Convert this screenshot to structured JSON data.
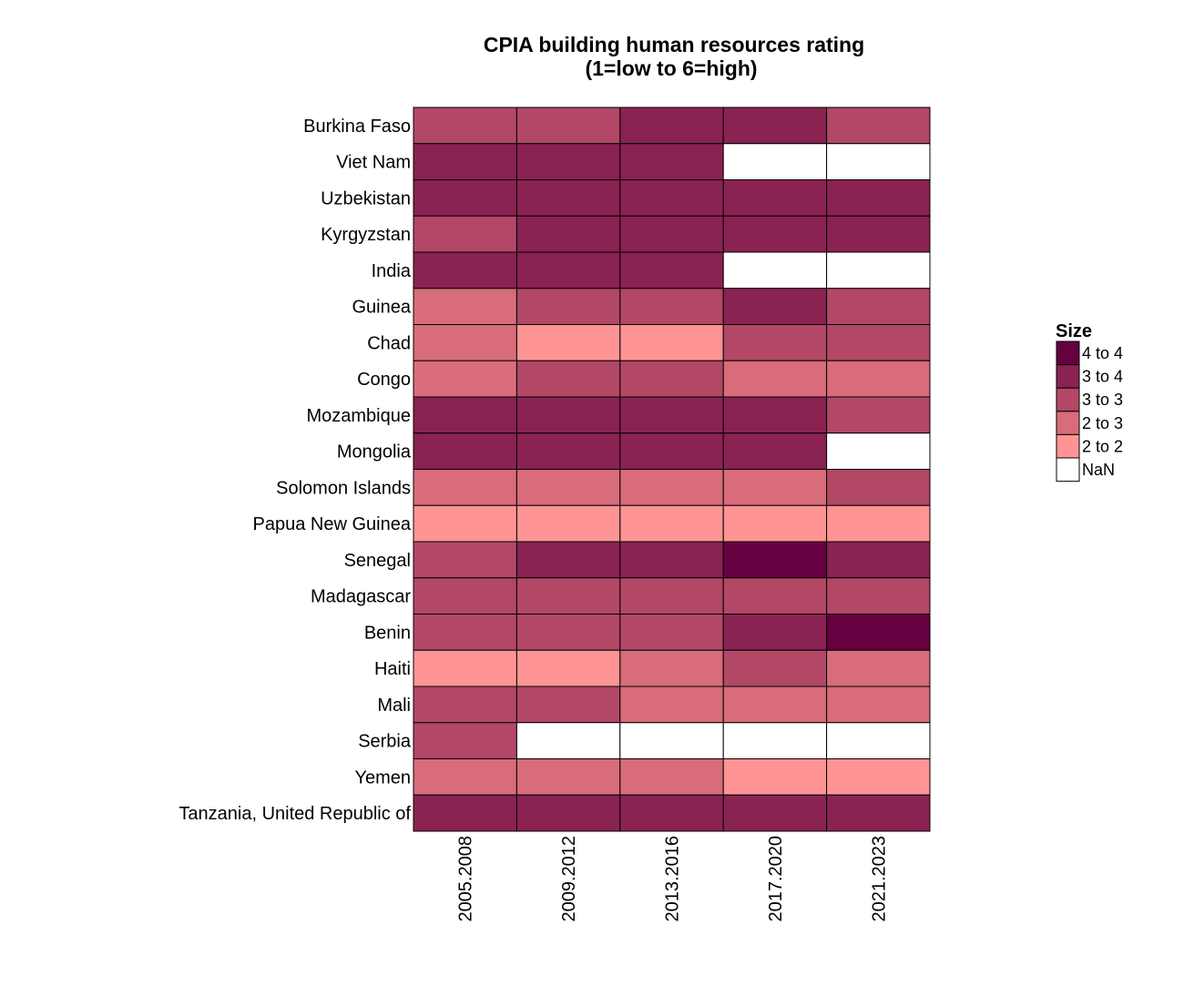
{
  "chart_data": {
    "type": "heatmap",
    "title": "CPIA building human resources rating",
    "subtitle": "(1=low to 6=high)",
    "columns": [
      "2005.2008",
      "2009.2012",
      "2013.2016",
      "2017.2020",
      "2021.2023"
    ],
    "rows": [
      "Burkina Faso",
      "Viet Nam",
      "Uzbekistan",
      "Kyrgyzstan",
      "India",
      "Guinea",
      "Chad",
      "Congo",
      "Mozambique",
      "Mongolia",
      "Solomon Islands",
      "Papua New Guinea",
      "Senegal",
      "Madagascar",
      "Benin",
      "Haiti",
      "Mali",
      "Serbia",
      "Yemen",
      "Tanzania, United Republic of"
    ],
    "cells": [
      [
        "3 to 3",
        "3 to 3",
        "3 to 4",
        "3 to 4",
        "3 to 3"
      ],
      [
        "3 to 4",
        "3 to 4",
        "3 to 4",
        "NaN",
        "NaN"
      ],
      [
        "3 to 4",
        "3 to 4",
        "3 to 4",
        "3 to 4",
        "3 to 4"
      ],
      [
        "3 to 3",
        "3 to 4",
        "3 to 4",
        "3 to 4",
        "3 to 4"
      ],
      [
        "3 to 4",
        "3 to 4",
        "3 to 4",
        "NaN",
        "NaN"
      ],
      [
        "2 to 3",
        "3 to 3",
        "3 to 3",
        "3 to 4",
        "3 to 3"
      ],
      [
        "2 to 3",
        "2 to 2",
        "2 to 2",
        "3 to 3",
        "3 to 3"
      ],
      [
        "2 to 3",
        "3 to 3",
        "3 to 3",
        "2 to 3",
        "2 to 3"
      ],
      [
        "3 to 4",
        "3 to 4",
        "3 to 4",
        "3 to 4",
        "3 to 3"
      ],
      [
        "3 to 4",
        "3 to 4",
        "3 to 4",
        "3 to 4",
        "NaN"
      ],
      [
        "2 to 3",
        "2 to 3",
        "2 to 3",
        "2 to 3",
        "3 to 3"
      ],
      [
        "2 to 2",
        "2 to 2",
        "2 to 2",
        "2 to 2",
        "2 to 2"
      ],
      [
        "3 to 3",
        "3 to 4",
        "3 to 4",
        "4 to 4",
        "3 to 4"
      ],
      [
        "3 to 3",
        "3 to 3",
        "3 to 3",
        "3 to 3",
        "3 to 3"
      ],
      [
        "3 to 3",
        "3 to 3",
        "3 to 3",
        "3 to 4",
        "4 to 4"
      ],
      [
        "2 to 2",
        "2 to 2",
        "2 to 3",
        "3 to 3",
        "2 to 3"
      ],
      [
        "3 to 3",
        "3 to 3",
        "2 to 3",
        "2 to 3",
        "2 to 3"
      ],
      [
        "3 to 3",
        "NaN",
        "NaN",
        "NaN",
        "NaN"
      ],
      [
        "2 to 3",
        "2 to 3",
        "2 to 3",
        "2 to 2",
        "2 to 2"
      ],
      [
        "3 to 4",
        "3 to 4",
        "3 to 4",
        "3 to 4",
        "3 to 4"
      ]
    ],
    "legend": {
      "title": "Size",
      "placement": "right",
      "entries": [
        {
          "label": "4 to 4",
          "color": "#660040"
        },
        {
          "label": "3 to 4",
          "color": "#8a2252"
        },
        {
          "label": "3 to 3",
          "color": "#b24866"
        },
        {
          "label": "2 to 3",
          "color": "#d86c7a"
        },
        {
          "label": "2 to 2",
          "color": "#ff9494"
        },
        {
          "label": "NaN",
          "color": "#ffffff"
        }
      ]
    }
  }
}
